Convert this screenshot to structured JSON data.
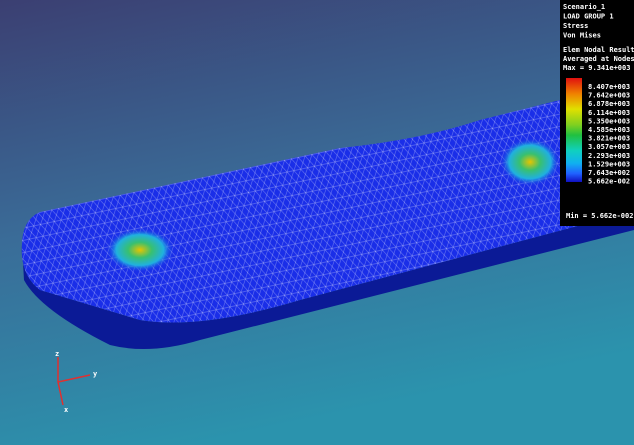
{
  "legend": {
    "header": [
      "Scenario_1",
      "LOAD GROUP 1",
      "Stress",
      "Von Mises"
    ],
    "result": [
      "Elem Nodal Result",
      "Averaged at Nodes",
      "Max = 9.341e+003"
    ],
    "levels": [
      "8.407e+003",
      "7.642e+003",
      "6.878e+003",
      "6.114e+003",
      "5.350e+003",
      "4.585e+003",
      "3.821e+003",
      "3.057e+003",
      "2.293e+003",
      "1.529e+003",
      "7.643e+002",
      "5.662e-002"
    ],
    "min": "Min = 5.662e-002"
  },
  "triad": {
    "z": "z",
    "y": "y",
    "x": "x"
  }
}
